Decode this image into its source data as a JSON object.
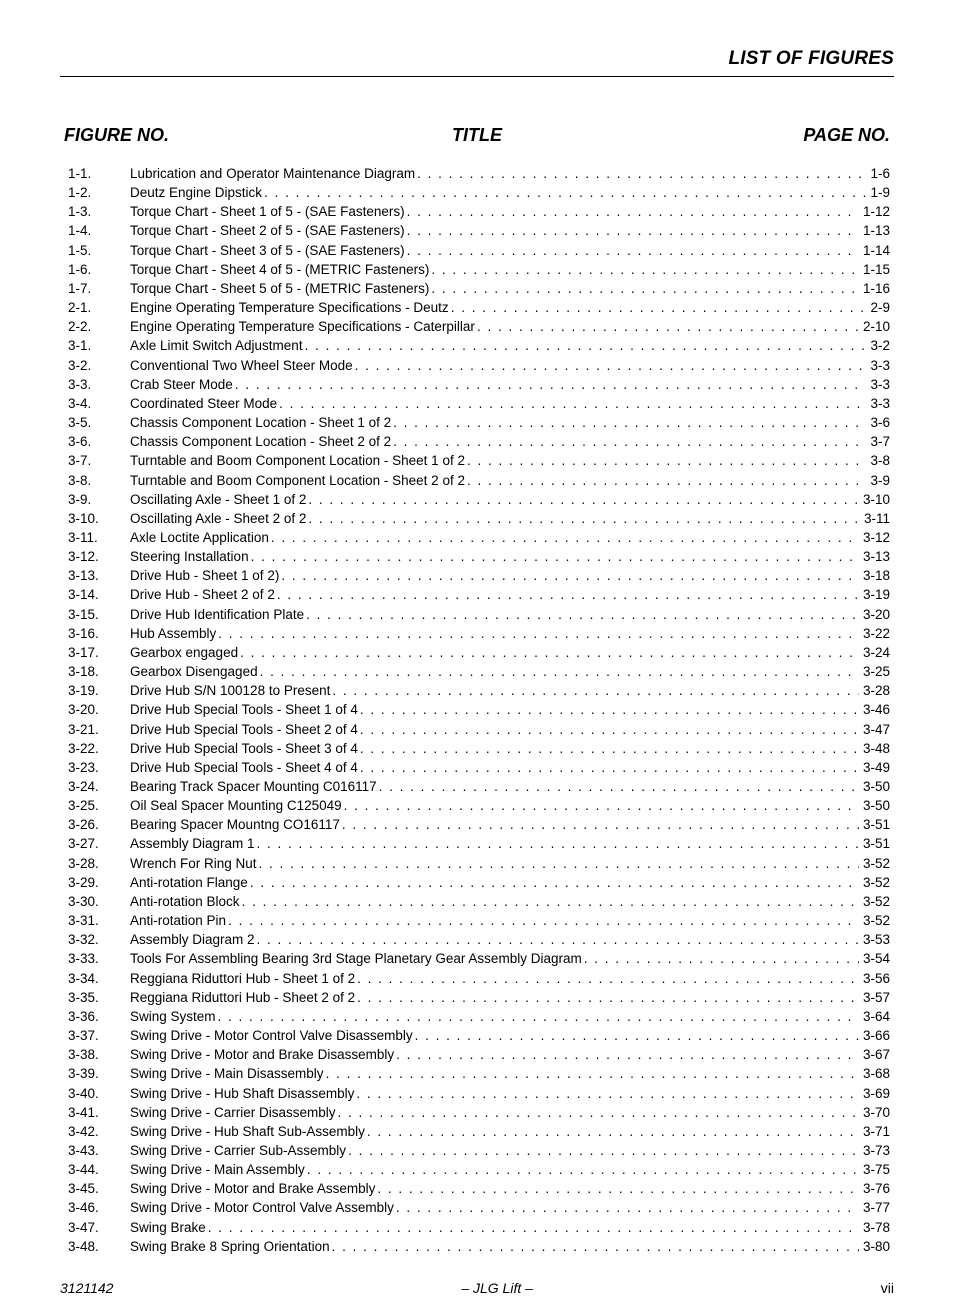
{
  "header": {
    "running_title": "LIST OF FIGURES",
    "col_figure": "FIGURE NO.",
    "col_title": "TITLE",
    "col_page": "PAGE NO."
  },
  "footer": {
    "doc_number": "3121142",
    "center": "– JLG Lift –",
    "page_label": "vii"
  },
  "entries": [
    {
      "fig": "1-1.",
      "title": "Lubrication and Operator Maintenance Diagram",
      "page": "1-6"
    },
    {
      "fig": "1-2.",
      "title": "Deutz Engine Dipstick",
      "page": "1-9"
    },
    {
      "fig": "1-3.",
      "title": "Torque Chart - Sheet 1 of 5 - (SAE Fasteners)",
      "page": "1-12"
    },
    {
      "fig": "1-4.",
      "title": "Torque Chart - Sheet 2 of 5 - (SAE Fasteners)",
      "page": "1-13"
    },
    {
      "fig": "1-5.",
      "title": "Torque Chart - Sheet 3 of 5 - (SAE Fasteners)",
      "page": "1-14"
    },
    {
      "fig": "1-6.",
      "title": "Torque Chart - Sheet 4 of 5 - (METRIC Fasteners)",
      "page": "1-15"
    },
    {
      "fig": "1-7.",
      "title": "Torque Chart - Sheet 5 of 5 - (METRIC Fasteners)",
      "page": "1-16"
    },
    {
      "fig": "2-1.",
      "title": "Engine Operating Temperature Specifications - Deutz",
      "page": "2-9"
    },
    {
      "fig": "2-2.",
      "title": "Engine Operating Temperature Specifications - Caterpillar",
      "page": "2-10"
    },
    {
      "fig": "3-1.",
      "title": "Axle Limit Switch Adjustment",
      "page": "3-2"
    },
    {
      "fig": "3-2.",
      "title": "Conventional Two Wheel Steer Mode",
      "page": "3-3"
    },
    {
      "fig": "3-3.",
      "title": "Crab Steer Mode",
      "page": "3-3"
    },
    {
      "fig": "3-4.",
      "title": "Coordinated Steer Mode",
      "page": "3-3"
    },
    {
      "fig": "3-5.",
      "title": "Chassis Component Location - Sheet 1 of 2",
      "page": "3-6"
    },
    {
      "fig": "3-6.",
      "title": "Chassis Component Location - Sheet 2 of 2",
      "page": "3-7"
    },
    {
      "fig": "3-7.",
      "title": "Turntable and Boom Component Location - Sheet 1 of 2",
      "page": "3-8"
    },
    {
      "fig": "3-8.",
      "title": "Turntable and Boom Component Location - Sheet 2 of 2",
      "page": "3-9"
    },
    {
      "fig": "3-9.",
      "title": "Oscillating Axle - Sheet 1 of 2",
      "page": "3-10"
    },
    {
      "fig": "3-10.",
      "title": "Oscillating Axle - Sheet 2 of 2",
      "page": "3-11"
    },
    {
      "fig": "3-11.",
      "title": "Axle Loctite Application",
      "page": "3-12"
    },
    {
      "fig": "3-12.",
      "title": "Steering Installation",
      "page": "3-13"
    },
    {
      "fig": "3-13.",
      "title": "Drive Hub - Sheet 1 of 2)",
      "page": "3-18"
    },
    {
      "fig": "3-14.",
      "title": "Drive Hub - Sheet 2 of 2",
      "page": "3-19"
    },
    {
      "fig": "3-15.",
      "title": "Drive Hub Identification Plate",
      "page": "3-20"
    },
    {
      "fig": "3-16.",
      "title": "Hub Assembly",
      "page": "3-22"
    },
    {
      "fig": "3-17.",
      "title": "Gearbox engaged",
      "page": "3-24"
    },
    {
      "fig": "3-18.",
      "title": "Gearbox Disengaged",
      "page": "3-25"
    },
    {
      "fig": "3-19.",
      "title": "Drive Hub S/N 100128 to Present",
      "page": "3-28"
    },
    {
      "fig": "3-20.",
      "title": "Drive Hub Special Tools - Sheet 1 of 4",
      "page": "3-46"
    },
    {
      "fig": "3-21.",
      "title": "Drive Hub Special Tools - Sheet 2 of 4",
      "page": "3-47"
    },
    {
      "fig": "3-22.",
      "title": "Drive Hub Special Tools - Sheet 3 of 4",
      "page": "3-48"
    },
    {
      "fig": "3-23.",
      "title": "Drive Hub Special Tools - Sheet 4 of 4",
      "page": "3-49"
    },
    {
      "fig": "3-24.",
      "title": "Bearing Track Spacer Mounting C016117",
      "page": "3-50"
    },
    {
      "fig": "3-25.",
      "title": "Oil Seal Spacer Mounting C125049",
      "page": "3-50"
    },
    {
      "fig": "3-26.",
      "title": "Bearing Spacer Mountng CO16117",
      "page": "3-51"
    },
    {
      "fig": "3-27.",
      "title": "Assembly Diagram 1",
      "page": "3-51"
    },
    {
      "fig": "3-28.",
      "title": "Wrench For Ring Nut",
      "page": "3-52"
    },
    {
      "fig": "3-29.",
      "title": "Anti-rotation Flange",
      "page": "3-52"
    },
    {
      "fig": "3-30.",
      "title": "Anti-rotation Block",
      "page": "3-52"
    },
    {
      "fig": "3-31.",
      "title": "Anti-rotation Pin",
      "page": "3-52"
    },
    {
      "fig": "3-32.",
      "title": "Assembly Diagram 2",
      "page": "3-53"
    },
    {
      "fig": "3-33.",
      "title": "Tools For Assembling Bearing 3rd Stage Planetary Gear Assembly Diagram",
      "page": "3-54"
    },
    {
      "fig": "3-34.",
      "title": "Reggiana Riduttori Hub - Sheet 1 of 2",
      "page": "3-56"
    },
    {
      "fig": "3-35.",
      "title": "Reggiana Riduttori Hub - Sheet 2 of 2",
      "page": "3-57"
    },
    {
      "fig": "3-36.",
      "title": "Swing System",
      "page": "3-64"
    },
    {
      "fig": "3-37.",
      "title": "Swing Drive - Motor Control Valve Disassembly",
      "page": "3-66"
    },
    {
      "fig": "3-38.",
      "title": "Swing Drive - Motor and Brake Disassembly",
      "page": "3-67"
    },
    {
      "fig": "3-39.",
      "title": "Swing Drive - Main Disassembly",
      "page": "3-68"
    },
    {
      "fig": "3-40.",
      "title": "Swing Drive - Hub Shaft Disassembly",
      "page": "3-69"
    },
    {
      "fig": "3-41.",
      "title": "Swing Drive - Carrier Disassembly",
      "page": "3-70"
    },
    {
      "fig": "3-42.",
      "title": "Swing Drive - Hub Shaft Sub-Assembly",
      "page": "3-71"
    },
    {
      "fig": "3-43.",
      "title": "Swing Drive - Carrier Sub-Assembly",
      "page": "3-73"
    },
    {
      "fig": "3-44.",
      "title": "Swing Drive - Main Assembly",
      "page": "3-75"
    },
    {
      "fig": "3-45.",
      "title": "Swing Drive - Motor and Brake Assembly",
      "page": "3-76"
    },
    {
      "fig": "3-46.",
      "title": "Swing Drive - Motor Control Valve Assembly",
      "page": "3-77"
    },
    {
      "fig": "3-47.",
      "title": "Swing Brake",
      "page": "3-78"
    },
    {
      "fig": "3-48.",
      "title": "Swing Brake 8 Spring Orientation",
      "page": "3-80"
    }
  ]
}
